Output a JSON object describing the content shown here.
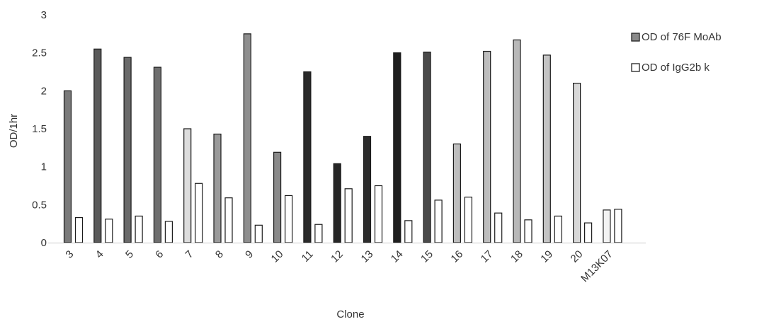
{
  "chart_data": {
    "type": "bar",
    "title": "",
    "xlabel": "Clone",
    "ylabel": "OD/1hr",
    "ylim": [
      0,
      3
    ],
    "yticks": [
      "0",
      "0.5",
      "1",
      "1.5",
      "2",
      "2.5",
      "3"
    ],
    "grid": false,
    "legend_position": "top-right",
    "categories": [
      "3",
      "4",
      "5",
      "6",
      "7",
      "8",
      "9",
      "10",
      "11",
      "12",
      "13",
      "14",
      "15",
      "16",
      "17",
      "18",
      "19",
      "20",
      "M13K07"
    ],
    "series": [
      {
        "name": "OD of 76F MoAb",
        "values": [
          2.0,
          2.55,
          2.44,
          2.31,
          1.5,
          1.43,
          2.75,
          1.19,
          2.25,
          1.04,
          1.4,
          2.5,
          2.51,
          1.3,
          2.52,
          2.67,
          2.47,
          2.1,
          0.43
        ],
        "fills": [
          "#7a7a7a",
          "#5a5a5a",
          "#6a6a6a",
          "#6e6e6e",
          "#dcdcdc",
          "#9a9a9a",
          "#8e8e8e",
          "#8a8a8a",
          "#2a2a2a",
          "#262626",
          "#2c2c2c",
          "#1e1e1e",
          "#4a4a4a",
          "#bdbdbd",
          "#bdbdbd",
          "#b8b8b8",
          "#c4c4c4",
          "#d8d8d8",
          "#f3f3f3"
        ]
      },
      {
        "name": "OD of IgG2b k",
        "values": [
          0.33,
          0.31,
          0.35,
          0.28,
          0.78,
          0.59,
          0.23,
          0.62,
          0.24,
          0.71,
          0.75,
          0.29,
          0.56,
          0.6,
          0.39,
          0.3,
          0.35,
          0.26,
          0.44
        ],
        "fills": [
          "#ffffff",
          "#ffffff",
          "#ffffff",
          "#ffffff",
          "#ffffff",
          "#ffffff",
          "#ffffff",
          "#ffffff",
          "#ffffff",
          "#ffffff",
          "#ffffff",
          "#ffffff",
          "#ffffff",
          "#ffffff",
          "#ffffff",
          "#ffffff",
          "#ffffff",
          "#ffffff",
          "#ffffff"
        ]
      }
    ],
    "legend_fills": [
      "#8a8a8a",
      "#ffffff"
    ]
  }
}
